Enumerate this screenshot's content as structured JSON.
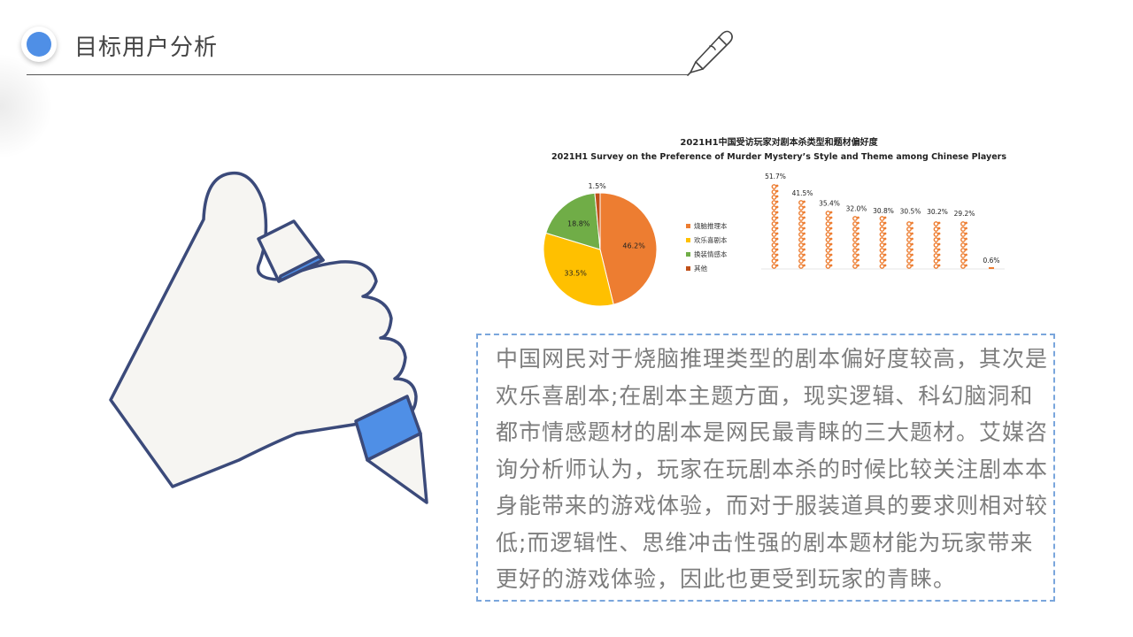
{
  "header": {
    "title": "目标用户分析"
  },
  "chart_data": [
    {
      "type": "pie",
      "title": "2021H1中国受访玩家对剧本杀类型和题材偏好度",
      "subtitle": "2021H1 Survey on the Preference of Murder Mystery’s Style and Theme among Chinese Players",
      "slices": [
        {
          "label": "烧脑推理本",
          "value": 46.2,
          "display": "46.2%",
          "color": "#ed7d31"
        },
        {
          "label": "欢乐喜剧本",
          "value": 33.5,
          "display": "33.5%",
          "color": "#ffc000"
        },
        {
          "label": "换装情感本",
          "value": 18.8,
          "display": "18.8%",
          "color": "#70ad47"
        },
        {
          "label": "其他",
          "value": 1.5,
          "display": "1.5%",
          "color": "#c0501a"
        }
      ],
      "legend_position": "right"
    },
    {
      "type": "bar",
      "mark_style": "pictogram",
      "color": "#ed7d31",
      "categories": [
        "",
        "",
        "",
        "",
        "",
        "",
        "",
        "",
        ""
      ],
      "values": [
        51.7,
        41.5,
        35.4,
        32.0,
        30.8,
        30.5,
        30.2,
        29.2,
        0.6
      ],
      "labels": [
        "51.7%",
        "41.5%",
        "35.4%",
        "32.0%",
        "30.8%",
        "30.5%",
        "30.2%",
        "29.2%",
        "0.6%"
      ],
      "ylim": [
        0,
        51.7
      ]
    }
  ],
  "main": {
    "paragraph": "中国网民对于烧脑推理类型的剧本偏好度较高，其次是欢乐喜剧本;在剧本主题方面，现实逻辑、科幻脑洞和都市情感题材的剧本是网民最青睐的三大题材。艾媒咨询分析师认为，玩家在玩剧本杀的时候比较关注剧本本身能带来的游戏体验，而对于服装道具的要求则相对较低;而逻辑性、思维冲击性强的剧本题材能为玩家带来更好的游戏体验，因此也更受到玩家的青睐。"
  }
}
